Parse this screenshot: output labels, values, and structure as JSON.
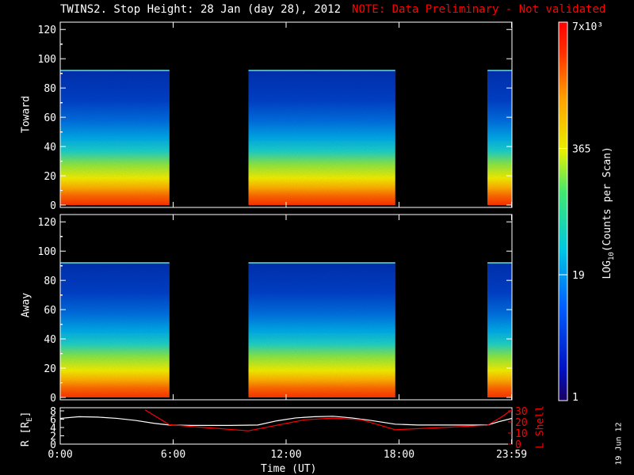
{
  "title": "TWINS2. Stop Height: 28 Jan (day  28), 2012",
  "note": "NOTE: Data Preliminary - Not validated",
  "stamp": "19 Jun 12",
  "colorbar": {
    "label": "LOG10(Counts per Scan)",
    "label_main": "LOG",
    "label_sub": "10",
    "label_rest": "(Counts per Scan)",
    "ticks": [
      "7x10³",
      "365",
      "19",
      "1"
    ],
    "tick_values": [
      7000,
      365,
      19,
      1
    ]
  },
  "chart_data": [
    {
      "type": "heatmap",
      "ylabel": "Toward",
      "ylim": [
        0,
        125
      ],
      "yticks": [
        0,
        20,
        40,
        60,
        80,
        100,
        120
      ],
      "x_units": "hours UT",
      "xlim": [
        0,
        24
      ],
      "data_segments": [
        [
          0,
          5.8
        ],
        [
          10.0,
          17.8
        ],
        [
          22.7,
          24
        ]
      ],
      "data_height": 92
    },
    {
      "type": "heatmap",
      "ylabel": "Away",
      "ylim": [
        0,
        125
      ],
      "yticks": [
        0,
        20,
        40,
        60,
        80,
        100,
        120
      ],
      "x_units": "hours UT",
      "xlim": [
        0,
        24
      ],
      "data_segments": [
        [
          0,
          5.8
        ],
        [
          10.0,
          17.8
        ],
        [
          22.7,
          24
        ]
      ],
      "data_height": 92
    },
    {
      "type": "line",
      "ylabel": "R [RE]",
      "ylabel_main": "R [R",
      "ylabel_sub": "E",
      "ylabel_end": "]",
      "ylim": [
        0,
        8
      ],
      "yticks": [
        "0",
        "2",
        "4",
        "6",
        "8"
      ],
      "y2label": "L Shell",
      "y2lim": [
        0,
        30
      ],
      "y2ticks": [
        "0",
        "10",
        "20",
        "30"
      ],
      "xlabel": "Time (UT)",
      "xticks": [
        "0:00",
        "6:00",
        "12:00",
        "18:00",
        "23:59"
      ],
      "xtick_hours": [
        0,
        6,
        12,
        18,
        23.98
      ],
      "series": [
        {
          "name": "R",
          "color": "#ffffff",
          "x": [
            0,
            1,
            2,
            3,
            4,
            5,
            5.8,
            7,
            9,
            10.5,
            11.5,
            12.5,
            13.5,
            14.5,
            15.5,
            16.5,
            17.8,
            19,
            21,
            22.7,
            23.3,
            24
          ],
          "y": [
            6.2,
            6.6,
            6.5,
            6.2,
            5.7,
            5.0,
            4.6,
            4.5,
            4.5,
            4.6,
            5.6,
            6.3,
            6.6,
            6.7,
            6.3,
            5.7,
            4.8,
            4.6,
            4.6,
            4.6,
            5.4,
            6.2
          ]
        },
        {
          "name": "L Shell",
          "color": "#ff0000",
          "x": [
            4.5,
            5.8,
            10.0,
            13.0,
            14.5,
            16.0,
            17.8,
            22.7,
            23.4,
            24
          ],
          "y": [
            31,
            17.5,
            12,
            22,
            23.5,
            22,
            13,
            17,
            24,
            31
          ]
        }
      ]
    }
  ]
}
